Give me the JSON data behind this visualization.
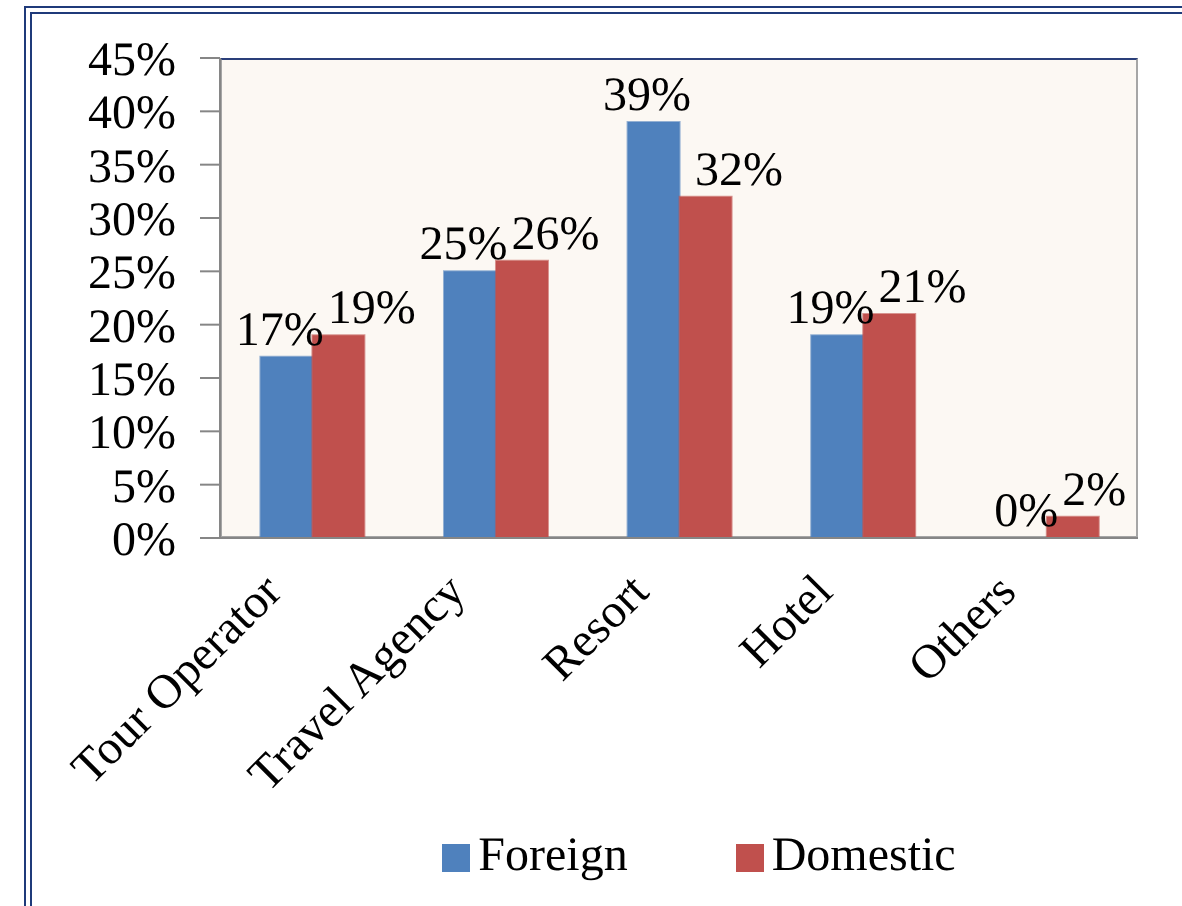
{
  "chart_data": {
    "type": "bar",
    "categories": [
      "Tour Operator",
      "Travel Agency",
      "Resort",
      "Hotel",
      "Others"
    ],
    "series": [
      {
        "name": "Foreign",
        "color": "#4f81bd",
        "values": [
          17,
          25,
          39,
          19,
          0
        ],
        "value_labels": [
          "17%",
          "25%",
          "39%",
          "19%",
          "0%"
        ]
      },
      {
        "name": "Domestic",
        "color": "#c0504d",
        "values": [
          19,
          26,
          32,
          21,
          2
        ],
        "value_labels": [
          "19%",
          "26%",
          "32%",
          "21%",
          "2%"
        ]
      }
    ],
    "ylim": [
      0,
      45
    ],
    "yticks": [
      {
        "value": 0,
        "label": "0%"
      },
      {
        "value": 5,
        "label": "5%"
      },
      {
        "value": 10,
        "label": "10%"
      },
      {
        "value": 15,
        "label": "15%"
      },
      {
        "value": 20,
        "label": "20%"
      },
      {
        "value": 25,
        "label": "25%"
      },
      {
        "value": 30,
        "label": "30%"
      },
      {
        "value": 35,
        "label": "35%"
      },
      {
        "value": 40,
        "label": "40%"
      },
      {
        "value": 45,
        "label": "45%"
      }
    ],
    "grid": false,
    "legend": "bottom"
  }
}
